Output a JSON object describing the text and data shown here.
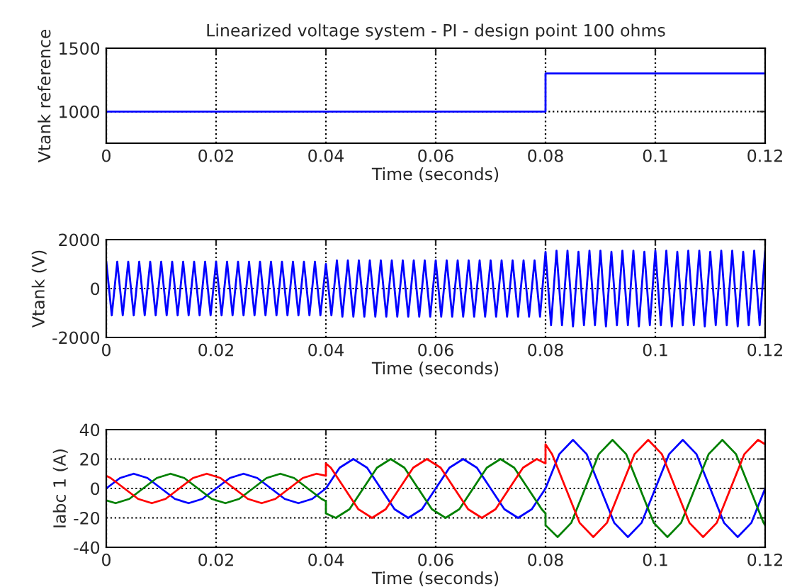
{
  "chart_data": [
    {
      "type": "step",
      "title": "Linearized voltage system - PI - design point 100 ohms",
      "xlabel": "Time (seconds)",
      "ylabel": "Vtank reference",
      "xlim": [
        0,
        0.12
      ],
      "xticks": [
        0,
        0.02,
        0.04,
        0.06,
        0.08,
        0.1,
        0.12
      ],
      "ylim": [
        750,
        1500
      ],
      "yticks": [
        1000,
        1500
      ],
      "grid": true,
      "series": [
        {
          "color": "#0000ff",
          "x": [
            0,
            0.08,
            0.12
          ],
          "values": [
            1000,
            1300,
            1300
          ]
        }
      ]
    },
    {
      "type": "line",
      "xlabel": "Time (seconds)",
      "ylabel": "Vtank (V)",
      "xlim": [
        0,
        0.12
      ],
      "xticks": [
        0,
        0.02,
        0.04,
        0.06,
        0.08,
        0.1,
        0.12
      ],
      "ylim": [
        -2000,
        2000
      ],
      "yticks": [
        -2000,
        0,
        2000
      ],
      "grid": true,
      "series": [
        {
          "color": "#0000ff",
          "x": [
            0,
            0.001,
            0.002,
            0.003,
            0.004,
            0.005,
            0.006,
            0.007,
            0.008,
            0.009,
            0.01,
            0.011,
            0.012,
            0.013,
            0.014,
            0.015,
            0.016,
            0.017,
            0.018,
            0.019,
            0.02,
            0.021,
            0.022,
            0.023,
            0.024,
            0.025,
            0.026,
            0.027,
            0.028,
            0.029,
            0.03,
            0.031,
            0.032,
            0.033,
            0.034,
            0.035,
            0.036,
            0.037,
            0.038,
            0.039,
            0.04,
            0.041,
            0.042,
            0.043,
            0.044,
            0.045,
            0.046,
            0.047,
            0.048,
            0.049,
            0.05,
            0.051,
            0.052,
            0.053,
            0.054,
            0.055,
            0.056,
            0.057,
            0.058,
            0.059,
            0.06,
            0.061,
            0.062,
            0.063,
            0.064,
            0.065,
            0.066,
            0.067,
            0.068,
            0.069,
            0.07,
            0.071,
            0.072,
            0.073,
            0.074,
            0.075,
            0.076,
            0.077,
            0.078,
            0.079,
            0.08,
            0.081,
            0.082,
            0.083,
            0.084,
            0.085,
            0.086,
            0.087,
            0.088,
            0.089,
            0.09,
            0.091,
            0.092,
            0.093,
            0.094,
            0.095,
            0.096,
            0.097,
            0.098,
            0.099,
            0.1,
            0.101,
            0.102,
            0.103,
            0.104,
            0.105,
            0.106,
            0.107,
            0.108,
            0.109,
            0.11,
            0.111,
            0.112,
            0.113,
            0.114,
            0.115,
            0.116,
            0.117,
            0.118,
            0.119,
            0.12
          ],
          "values": [
            1100,
            -1100,
            1100,
            -1100,
            1100,
            -1100,
            1100,
            -1100,
            1100,
            -1100,
            1100,
            -1100,
            1100,
            -1100,
            1100,
            -1100,
            1100,
            -1100,
            1100,
            -1100,
            1100,
            -1100,
            1100,
            -1100,
            1100,
            -1100,
            1100,
            -1100,
            1100,
            -1100,
            1100,
            -1100,
            1100,
            -1100,
            1100,
            -1100,
            1100,
            -1100,
            1100,
            -1100,
            1000,
            -1100,
            1150,
            -1150,
            1150,
            -1150,
            1150,
            -1150,
            1150,
            -1150,
            1150,
            -1150,
            1150,
            -1150,
            1150,
            -1150,
            1150,
            -1150,
            1150,
            -1150,
            1150,
            -1150,
            1150,
            -1150,
            1150,
            -1150,
            1150,
            -1150,
            1150,
            -1150,
            1150,
            -1150,
            1150,
            -1150,
            1150,
            -1150,
            1150,
            -1150,
            1150,
            -1150,
            1500,
            -1500,
            1550,
            -1500,
            1550,
            -1550,
            1500,
            -1500,
            1550,
            -1500,
            1550,
            -1550,
            1500,
            -1500,
            1550,
            -1500,
            1550,
            -1550,
            1500,
            -1500,
            1550,
            -1500,
            1550,
            -1550,
            1500,
            -1500,
            1550,
            -1500,
            1550,
            -1550,
            1500,
            -1500,
            1550,
            -1500,
            1550,
            -1550,
            1500,
            -1500,
            1550,
            -1500,
            1550
          ]
        }
      ]
    },
    {
      "type": "line",
      "xlabel": "Time (seconds)",
      "ylabel": "Iabc 1 (A)",
      "xlim": [
        0,
        0.12
      ],
      "xticks": [
        0,
        0.02,
        0.04,
        0.06,
        0.08,
        0.1,
        0.12
      ],
      "ylim": [
        -40,
        40
      ],
      "yticks": [
        -40,
        -20,
        0,
        20,
        40
      ],
      "grid": true,
      "series": [
        {
          "color": "#0000ff",
          "x": [
            0,
            0.0025,
            0.005,
            0.0075,
            0.01,
            0.0125,
            0.015,
            0.0175,
            0.02,
            0.0225,
            0.025,
            0.0275,
            0.03,
            0.0325,
            0.035,
            0.0375,
            0.04,
            0.0425,
            0.045,
            0.0475,
            0.05,
            0.0525,
            0.055,
            0.0575,
            0.06,
            0.0625,
            0.065,
            0.0675,
            0.07,
            0.0725,
            0.075,
            0.0775,
            0.08,
            0.0825,
            0.085,
            0.0875,
            0.09,
            0.0925,
            0.095,
            0.0975,
            0.1,
            0.1025,
            0.105,
            0.1075,
            0.11,
            0.1125,
            0.115,
            0.1175,
            0.12
          ],
          "values": [
            0,
            7.1,
            10,
            7.1,
            0,
            -7.1,
            -10,
            -7.1,
            0,
            7.1,
            10,
            7.1,
            0,
            -7.1,
            -10,
            -7.1,
            0,
            14.1,
            20,
            14.1,
            0,
            -14.1,
            -20,
            -14.1,
            0,
            14.1,
            20,
            14.1,
            0,
            -14.1,
            -20,
            -14.1,
            0,
            23.3,
            33,
            23.3,
            0,
            -23.3,
            -33,
            -23.3,
            0,
            23.3,
            33,
            23.3,
            0,
            -23.3,
            -33,
            -23.3,
            0
          ]
        },
        {
          "color": "#008000",
          "x": [
            0,
            0.0017,
            0.0042,
            0.0067,
            0.0092,
            0.0117,
            0.0142,
            0.0167,
            0.0192,
            0.0217,
            0.0242,
            0.0267,
            0.0292,
            0.0317,
            0.0342,
            0.0367,
            0.0392,
            0.04,
            0.04,
            0.0418,
            0.0443,
            0.0468,
            0.0493,
            0.0518,
            0.0543,
            0.0568,
            0.0593,
            0.0618,
            0.0643,
            0.0668,
            0.0693,
            0.0718,
            0.0743,
            0.0768,
            0.0793,
            0.08,
            0.08,
            0.0822,
            0.0847,
            0.0872,
            0.0897,
            0.0922,
            0.0947,
            0.0972,
            0.0997,
            0.1022,
            0.1047,
            0.1072,
            0.1097,
            0.1122,
            0.1147,
            0.1172,
            0.1197,
            0.12
          ],
          "values": [
            -8.1,
            -10,
            -7.1,
            0,
            7.1,
            10,
            7.1,
            0,
            -7.1,
            -10,
            -7.1,
            0,
            7.1,
            10,
            7.1,
            0,
            -7.1,
            -8.7,
            -17,
            -20,
            -14.1,
            0,
            14.1,
            20,
            14.1,
            0,
            -14.1,
            -20,
            -14.1,
            0,
            14.1,
            20,
            14.1,
            0,
            -14.1,
            -17,
            -25,
            -33,
            -23.3,
            0,
            23.3,
            33,
            23.3,
            0,
            -23.3,
            -33,
            -23.3,
            0,
            23.3,
            33,
            23.3,
            0,
            -23.3,
            -25
          ]
        },
        {
          "color": "#ff0000",
          "x": [
            0,
            0.0008,
            0.0033,
            0.0058,
            0.0083,
            0.0108,
            0.0133,
            0.0158,
            0.0183,
            0.0208,
            0.0233,
            0.0258,
            0.0283,
            0.0308,
            0.0333,
            0.0358,
            0.0383,
            0.04,
            0.04,
            0.0409,
            0.0434,
            0.0459,
            0.0484,
            0.0509,
            0.0534,
            0.0559,
            0.0584,
            0.0609,
            0.0634,
            0.0659,
            0.0684,
            0.0709,
            0.0734,
            0.0759,
            0.0784,
            0.08,
            0.08,
            0.0812,
            0.0837,
            0.0862,
            0.0887,
            0.0912,
            0.0937,
            0.0962,
            0.0987,
            0.1012,
            0.1037,
            0.1062,
            0.1087,
            0.1112,
            0.1137,
            0.1162,
            0.1187,
            0.12
          ],
          "values": [
            8.6,
            7.1,
            0,
            -7.1,
            -10,
            -7.1,
            0,
            7.1,
            10,
            7.1,
            0,
            -7.1,
            -10,
            -7.1,
            0,
            7.1,
            10,
            8.6,
            17,
            14.1,
            0,
            -14.1,
            -20,
            -14.1,
            0,
            14.1,
            20,
            14.1,
            0,
            -14.1,
            -20,
            -14.1,
            0,
            14.1,
            20,
            17,
            30,
            23.3,
            0,
            -23.3,
            -33,
            -23.3,
            0,
            23.3,
            33,
            23.3,
            0,
            -23.3,
            -33,
            -23.3,
            0,
            23.3,
            33,
            30
          ]
        }
      ]
    }
  ]
}
